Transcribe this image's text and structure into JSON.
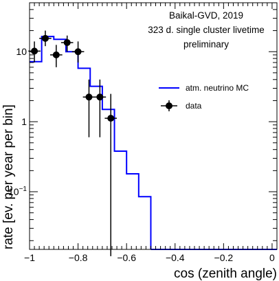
{
  "chart_data": {
    "type": "scatter",
    "xlabel": "cos (zenith angle)",
    "ylabel": "rate [ev. per year per bin]",
    "xlim": [
      -1.0,
      0.02
    ],
    "ylim": [
      0.015,
      50
    ],
    "yscale": "log",
    "grid": false,
    "legend_position": "right",
    "x_ticks": [
      {
        "value": -1.0,
        "label": "−1"
      },
      {
        "value": -0.8,
        "label": "−0.8"
      },
      {
        "value": -0.6,
        "label": "−0.6"
      },
      {
        "value": -0.4,
        "label": "−0.4"
      },
      {
        "value": -0.2,
        "label": "−0.2"
      },
      {
        "value": 0.0,
        "label": "0"
      }
    ],
    "y_ticks": [
      {
        "value": 10,
        "label": "10",
        "exp": ""
      },
      {
        "value": 1,
        "label": "1",
        "exp": ""
      },
      {
        "value": 0.1,
        "label": "10",
        "exp": "−1"
      }
    ],
    "annotations": [
      "Baikal-GVD, 2019",
      "323 d. single cluster livetime",
      "preliminary"
    ],
    "series": [
      {
        "name": "atm. neutrino MC",
        "kind": "histogram",
        "color": "#0000ff",
        "bin_edges": [
          -1.0,
          -0.95,
          -0.9,
          -0.85,
          -0.8,
          -0.75,
          -0.7,
          -0.65,
          -0.6,
          -0.55,
          -0.5
        ],
        "values": [
          7.2,
          16.5,
          15.0,
          10.0,
          5.8,
          3.2,
          1.5,
          0.38,
          0.18,
          0.085
        ]
      },
      {
        "name": "data",
        "kind": "points",
        "color": "#000000",
        "x": [
          -0.98,
          -0.935,
          -0.89,
          -0.845,
          -0.8,
          -0.755,
          -0.71,
          -0.665
        ],
        "y": [
          10.2,
          15.5,
          9.0,
          13.5,
          10.0,
          2.25,
          2.25,
          1.12
        ],
        "y_low": [
          7.0,
          12.0,
          6.0,
          10.0,
          7.0,
          0.6,
          0.6,
          0.012
        ],
        "y_high": [
          14.0,
          20.0,
          12.5,
          17.0,
          14.0,
          4.0,
          4.0,
          2.5
        ]
      }
    ]
  }
}
